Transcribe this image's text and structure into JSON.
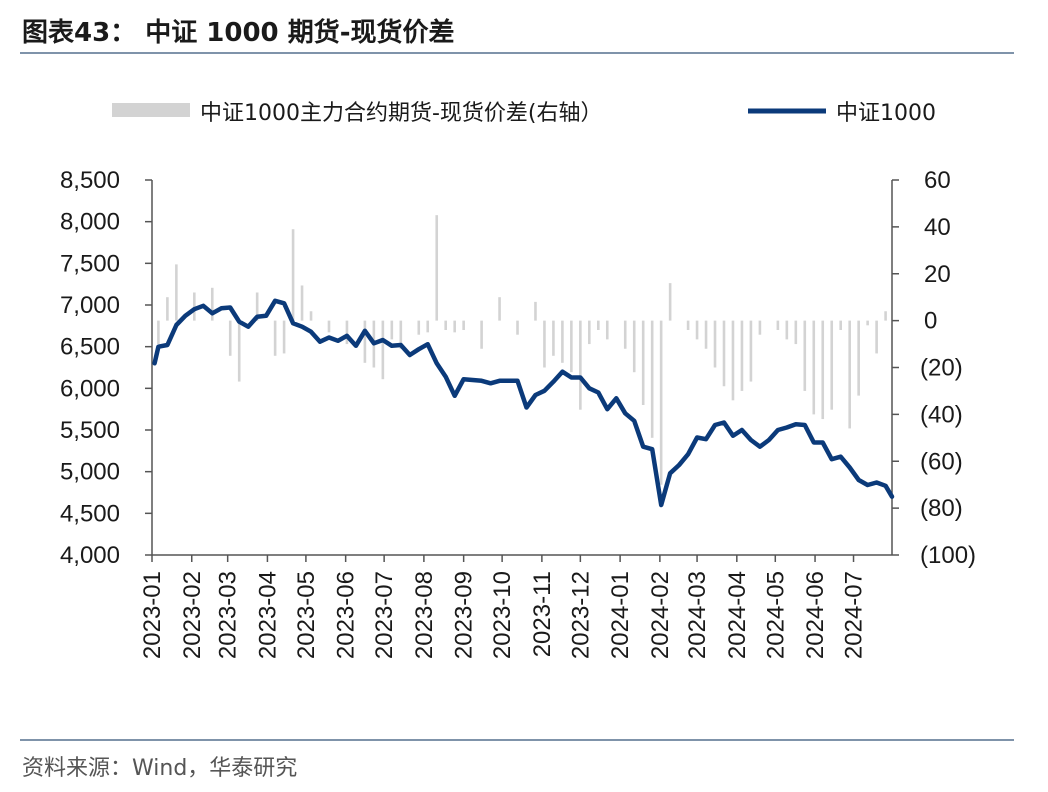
{
  "title": "图表43：   中证 1000 期货-现货价差",
  "source": "资料来源：Wind，华泰研究",
  "colors": {
    "line": "#0b3a7a",
    "bar": "#d3d3d3",
    "rule": "#7f93aa"
  },
  "chart_data": {
    "type": "line+bar",
    "legend": [
      {
        "name": "中证1000主力合约期货-现货价差(右轴）",
        "type": "bar",
        "color": "#d3d3d3"
      },
      {
        "name": "中证1000",
        "type": "line",
        "color": "#0b3a7a"
      }
    ],
    "legend_position": "top",
    "left_axis": {
      "min": 4000,
      "max": 8500,
      "ticks": [
        "4,000",
        "4,500",
        "5,000",
        "5,500",
        "6,000",
        "6,500",
        "7,000",
        "7,500",
        "8,000",
        "8,500"
      ]
    },
    "right_axis": {
      "min": -100,
      "max": 60,
      "ticks": [
        "(100)",
        "(80)",
        "(60)",
        "(40)",
        "(20)",
        "0",
        "20",
        "40",
        "60"
      ]
    },
    "x_start": "2023-01-01",
    "x_end": "2024-07-31",
    "x_ticks": [
      "2023-01",
      "2023-02",
      "2023-03",
      "2023-04",
      "2023-05",
      "2023-06",
      "2023-07",
      "2023-08",
      "2023-09",
      "2023-10",
      "2023-11",
      "2023-12",
      "2024-01",
      "2024-02",
      "2024-03",
      "2024-04",
      "2024-05",
      "2024-06",
      "2024-07"
    ],
    "line_series": {
      "name": "中证1000",
      "points": [
        [
          "2023-01-03",
          6300
        ],
        [
          "2023-01-06",
          6500
        ],
        [
          "2023-01-13",
          6520
        ],
        [
          "2023-01-20",
          6760
        ],
        [
          "2023-01-27",
          6870
        ],
        [
          "2023-02-03",
          6950
        ],
        [
          "2023-02-10",
          6990
        ],
        [
          "2023-02-17",
          6900
        ],
        [
          "2023-02-24",
          6960
        ],
        [
          "2023-03-03",
          6970
        ],
        [
          "2023-03-10",
          6800
        ],
        [
          "2023-03-17",
          6740
        ],
        [
          "2023-03-24",
          6860
        ],
        [
          "2023-03-31",
          6870
        ],
        [
          "2023-04-07",
          7050
        ],
        [
          "2023-04-14",
          7020
        ],
        [
          "2023-04-21",
          6780
        ],
        [
          "2023-04-28",
          6740
        ],
        [
          "2023-05-05",
          6680
        ],
        [
          "2023-05-12",
          6560
        ],
        [
          "2023-05-19",
          6610
        ],
        [
          "2023-05-26",
          6570
        ],
        [
          "2023-06-02",
          6630
        ],
        [
          "2023-06-09",
          6510
        ],
        [
          "2023-06-16",
          6690
        ],
        [
          "2023-06-23",
          6540
        ],
        [
          "2023-06-30",
          6580
        ],
        [
          "2023-07-07",
          6510
        ],
        [
          "2023-07-14",
          6520
        ],
        [
          "2023-07-21",
          6400
        ],
        [
          "2023-07-28",
          6470
        ],
        [
          "2023-08-04",
          6530
        ],
        [
          "2023-08-11",
          6300
        ],
        [
          "2023-08-18",
          6140
        ],
        [
          "2023-08-25",
          5910
        ],
        [
          "2023-09-01",
          6110
        ],
        [
          "2023-09-08",
          6100
        ],
        [
          "2023-09-15",
          6090
        ],
        [
          "2023-09-22",
          6060
        ],
        [
          "2023-09-29",
          6090
        ],
        [
          "2023-10-06",
          6090
        ],
        [
          "2023-10-13",
          6090
        ],
        [
          "2023-10-20",
          5770
        ],
        [
          "2023-10-27",
          5920
        ],
        [
          "2023-11-03",
          5970
        ],
        [
          "2023-11-10",
          6080
        ],
        [
          "2023-11-17",
          6200
        ],
        [
          "2023-11-24",
          6130
        ],
        [
          "2023-12-01",
          6130
        ],
        [
          "2023-12-08",
          6000
        ],
        [
          "2023-12-15",
          5950
        ],
        [
          "2023-12-22",
          5750
        ],
        [
          "2023-12-29",
          5880
        ],
        [
          "2024-01-05",
          5700
        ],
        [
          "2024-01-12",
          5610
        ],
        [
          "2024-01-19",
          5300
        ],
        [
          "2024-01-26",
          5270
        ],
        [
          "2024-02-02",
          4600
        ],
        [
          "2024-02-09",
          4980
        ],
        [
          "2024-02-16",
          5080
        ],
        [
          "2024-02-23",
          5210
        ],
        [
          "2024-03-01",
          5410
        ],
        [
          "2024-03-08",
          5390
        ],
        [
          "2024-03-15",
          5560
        ],
        [
          "2024-03-22",
          5590
        ],
        [
          "2024-03-29",
          5430
        ],
        [
          "2024-04-05",
          5500
        ],
        [
          "2024-04-12",
          5380
        ],
        [
          "2024-04-19",
          5300
        ],
        [
          "2024-04-26",
          5380
        ],
        [
          "2024-05-03",
          5500
        ],
        [
          "2024-05-10",
          5530
        ],
        [
          "2024-05-17",
          5570
        ],
        [
          "2024-05-24",
          5560
        ],
        [
          "2024-05-31",
          5350
        ],
        [
          "2024-06-07",
          5350
        ],
        [
          "2024-06-14",
          5150
        ],
        [
          "2024-06-21",
          5180
        ],
        [
          "2024-06-28",
          5050
        ],
        [
          "2024-07-05",
          4900
        ],
        [
          "2024-07-12",
          4840
        ],
        [
          "2024-07-19",
          4870
        ],
        [
          "2024-07-26",
          4830
        ],
        [
          "2024-07-31",
          4700
        ]
      ]
    },
    "bar_series": {
      "name": "中证1000主力合约期货-现货价差(右轴）",
      "points": [
        [
          "2023-01-06",
          -10
        ],
        [
          "2023-01-13",
          10
        ],
        [
          "2023-01-20",
          24
        ],
        [
          "2023-02-03",
          12
        ],
        [
          "2023-02-17",
          14
        ],
        [
          "2023-03-03",
          -15
        ],
        [
          "2023-03-10",
          -26
        ],
        [
          "2023-03-24",
          12
        ],
        [
          "2023-04-07",
          -15
        ],
        [
          "2023-04-14",
          -14
        ],
        [
          "2023-04-21",
          39
        ],
        [
          "2023-04-28",
          15
        ],
        [
          "2023-05-05",
          4
        ],
        [
          "2023-05-19",
          -5
        ],
        [
          "2023-06-02",
          -10
        ],
        [
          "2023-06-16",
          -18
        ],
        [
          "2023-06-23",
          -20
        ],
        [
          "2023-06-30",
          -25
        ],
        [
          "2023-07-07",
          -8
        ],
        [
          "2023-07-14",
          -12
        ],
        [
          "2023-07-28",
          -6
        ],
        [
          "2023-08-04",
          -5
        ],
        [
          "2023-08-11",
          45
        ],
        [
          "2023-08-18",
          -4
        ],
        [
          "2023-08-25",
          -5
        ],
        [
          "2023-09-01",
          -4
        ],
        [
          "2023-09-15",
          -12
        ],
        [
          "2023-09-29",
          10
        ],
        [
          "2023-10-13",
          -6
        ],
        [
          "2023-10-27",
          8
        ],
        [
          "2023-11-03",
          -20
        ],
        [
          "2023-11-10",
          -15
        ],
        [
          "2023-11-17",
          -18
        ],
        [
          "2023-11-24",
          -22
        ],
        [
          "2023-12-01",
          -38
        ],
        [
          "2023-12-08",
          -10
        ],
        [
          "2023-12-15",
          -4
        ],
        [
          "2023-12-22",
          -8
        ],
        [
          "2024-01-05",
          -12
        ],
        [
          "2024-01-12",
          -22
        ],
        [
          "2024-01-19",
          -36
        ],
        [
          "2024-01-26",
          -50
        ],
        [
          "2024-02-02",
          -70
        ],
        [
          "2024-02-09",
          16
        ],
        [
          "2024-02-23",
          -4
        ],
        [
          "2024-03-01",
          -8
        ],
        [
          "2024-03-08",
          -12
        ],
        [
          "2024-03-15",
          -20
        ],
        [
          "2024-03-22",
          -28
        ],
        [
          "2024-03-29",
          -34
        ],
        [
          "2024-04-05",
          -30
        ],
        [
          "2024-04-12",
          -26
        ],
        [
          "2024-04-19",
          -6
        ],
        [
          "2024-05-03",
          -4
        ],
        [
          "2024-05-10",
          -8
        ],
        [
          "2024-05-17",
          -10
        ],
        [
          "2024-05-24",
          -30
        ],
        [
          "2024-05-31",
          -40
        ],
        [
          "2024-06-07",
          -42
        ],
        [
          "2024-06-14",
          -38
        ],
        [
          "2024-06-21",
          -4
        ],
        [
          "2024-06-28",
          -46
        ],
        [
          "2024-07-05",
          -32
        ],
        [
          "2024-07-12",
          -2
        ],
        [
          "2024-07-19",
          -14
        ],
        [
          "2024-07-26",
          4
        ]
      ]
    }
  }
}
